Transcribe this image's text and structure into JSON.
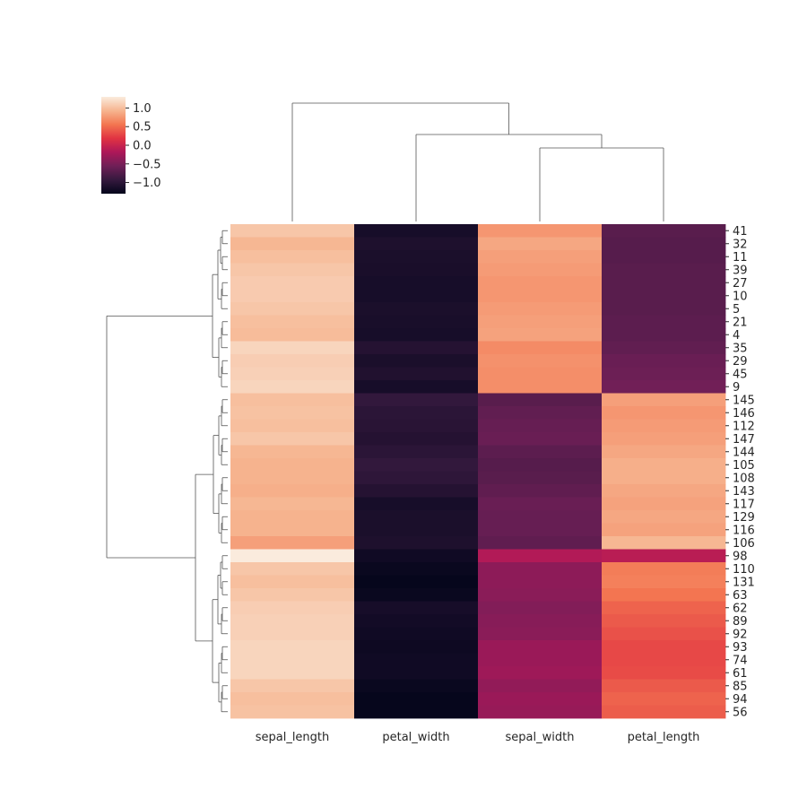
{
  "chart_data": {
    "type": "heatmap",
    "subtype": "clustermap",
    "columns": [
      "sepal_length",
      "petal_width",
      "sepal_width",
      "petal_length"
    ],
    "row_labels": [
      "41",
      "32",
      "11",
      "39",
      "27",
      "10",
      "5",
      "21",
      "4",
      "35",
      "29",
      "45",
      "9",
      "145",
      "146",
      "112",
      "147",
      "144",
      "105",
      "108",
      "143",
      "117",
      "129",
      "116",
      "106",
      "98",
      "110",
      "131",
      "63",
      "62",
      "89",
      "92",
      "93",
      "74",
      "61",
      "85",
      "94",
      "56"
    ],
    "row_cluster_sizes": [
      13,
      12,
      13
    ],
    "values": [
      [
        1.05,
        -1.15,
        0.75,
        -0.7
      ],
      [
        0.95,
        -1.1,
        0.85,
        -0.72
      ],
      [
        1.0,
        -1.12,
        0.8,
        -0.72
      ],
      [
        1.05,
        -1.13,
        0.78,
        -0.7
      ],
      [
        1.08,
        -1.15,
        0.75,
        -0.7
      ],
      [
        1.08,
        -1.15,
        0.75,
        -0.7
      ],
      [
        1.05,
        -1.12,
        0.78,
        -0.7
      ],
      [
        1.0,
        -1.14,
        0.8,
        -0.68
      ],
      [
        0.98,
        -1.15,
        0.82,
        -0.68
      ],
      [
        1.15,
        -1.05,
        0.68,
        -0.65
      ],
      [
        1.1,
        -1.12,
        0.72,
        -0.6
      ],
      [
        1.12,
        -1.08,
        0.7,
        -0.58
      ],
      [
        1.15,
        -1.15,
        0.7,
        -0.55
      ],
      [
        1.0,
        -0.95,
        -0.7,
        0.8
      ],
      [
        1.02,
        -1.0,
        -0.65,
        0.75
      ],
      [
        1.0,
        -1.02,
        -0.62,
        0.78
      ],
      [
        1.05,
        -1.05,
        -0.6,
        0.8
      ],
      [
        0.95,
        -1.0,
        -0.68,
        0.85
      ],
      [
        0.92,
        -0.95,
        -0.72,
        0.9
      ],
      [
        0.92,
        -0.98,
        -0.7,
        0.9
      ],
      [
        0.9,
        -1.05,
        -0.66,
        0.85
      ],
      [
        0.95,
        -1.15,
        -0.6,
        0.82
      ],
      [
        0.92,
        -1.12,
        -0.62,
        0.85
      ],
      [
        0.92,
        -1.12,
        -0.62,
        0.82
      ],
      [
        0.8,
        -1.1,
        -0.66,
        0.95
      ],
      [
        1.3,
        -1.2,
        -0.15,
        -0.1
      ],
      [
        1.05,
        -1.25,
        -0.38,
        0.6
      ],
      [
        1.0,
        -1.28,
        -0.38,
        0.62
      ],
      [
        1.05,
        -1.25,
        -0.4,
        0.55
      ],
      [
        1.1,
        -1.15,
        -0.45,
        0.45
      ],
      [
        1.12,
        -1.18,
        -0.42,
        0.4
      ],
      [
        1.12,
        -1.2,
        -0.4,
        0.35
      ],
      [
        1.15,
        -1.22,
        -0.3,
        0.3
      ],
      [
        1.15,
        -1.2,
        -0.3,
        0.3
      ],
      [
        1.15,
        -1.2,
        -0.28,
        0.32
      ],
      [
        1.05,
        -1.25,
        -0.35,
        0.4
      ],
      [
        1.0,
        -1.28,
        -0.3,
        0.45
      ],
      [
        1.02,
        -1.28,
        -0.32,
        0.42
      ]
    ],
    "colorbar": {
      "vmin": -1.3,
      "vmax": 1.3,
      "ticks": [
        1.0,
        0.5,
        0.0,
        -0.5,
        -1.0
      ],
      "tick_labels": [
        "1.0",
        "0.5",
        "0.0",
        "−0.5",
        "−1.0"
      ],
      "colormap": "rocket",
      "colormap_stops": [
        "#03051a",
        "#35193e",
        "#701f57",
        "#ad1759",
        "#e13342",
        "#f37651",
        "#f6b48f",
        "#faebdd"
      ]
    },
    "dendrogram_color": "#555555",
    "legend": "colorbar top-left"
  }
}
